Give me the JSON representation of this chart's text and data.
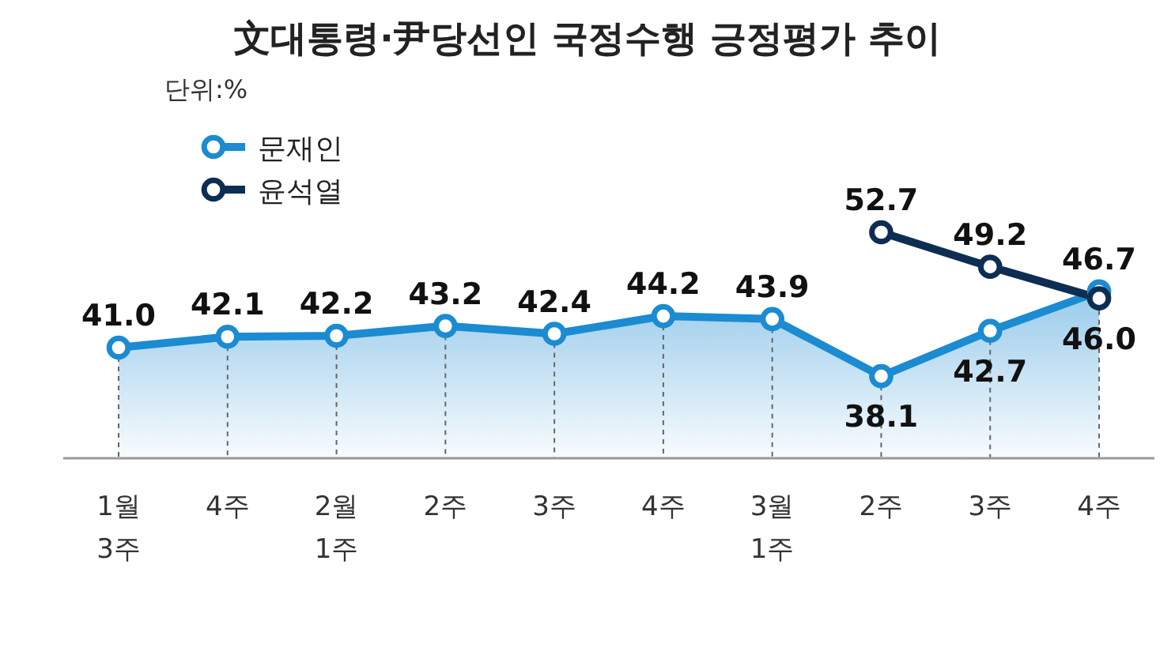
{
  "chart_data": {
    "type": "line",
    "title": "文대통령·尹당선인 국정수행 긍정평가 추이",
    "subtitle": "단위:%",
    "categories": [
      "1월\n3주",
      "4주",
      "2월\n1주",
      "2주",
      "3주",
      "4주",
      "3월\n1주",
      "2주",
      "3주",
      "4주"
    ],
    "series": [
      {
        "name": "문재인",
        "type": "area",
        "color": "#1b8bd2",
        "values": [
          41.0,
          42.1,
          42.2,
          43.2,
          42.4,
          44.2,
          43.9,
          38.1,
          42.7,
          46.7
        ],
        "value_labels": [
          "41.0",
          "42.1",
          "42.2",
          "43.2",
          "42.4",
          "44.2",
          "43.9",
          "38.1",
          "42.7",
          "46.7"
        ]
      },
      {
        "name": "윤석열",
        "color": "#0e2d52",
        "values": [
          null,
          null,
          null,
          null,
          null,
          null,
          null,
          52.7,
          49.2,
          46.0
        ],
        "value_labels": [
          null,
          null,
          null,
          null,
          null,
          null,
          null,
          "52.7",
          "49.2",
          "46.0"
        ]
      }
    ],
    "marker": "circle",
    "legend": "top left"
  }
}
